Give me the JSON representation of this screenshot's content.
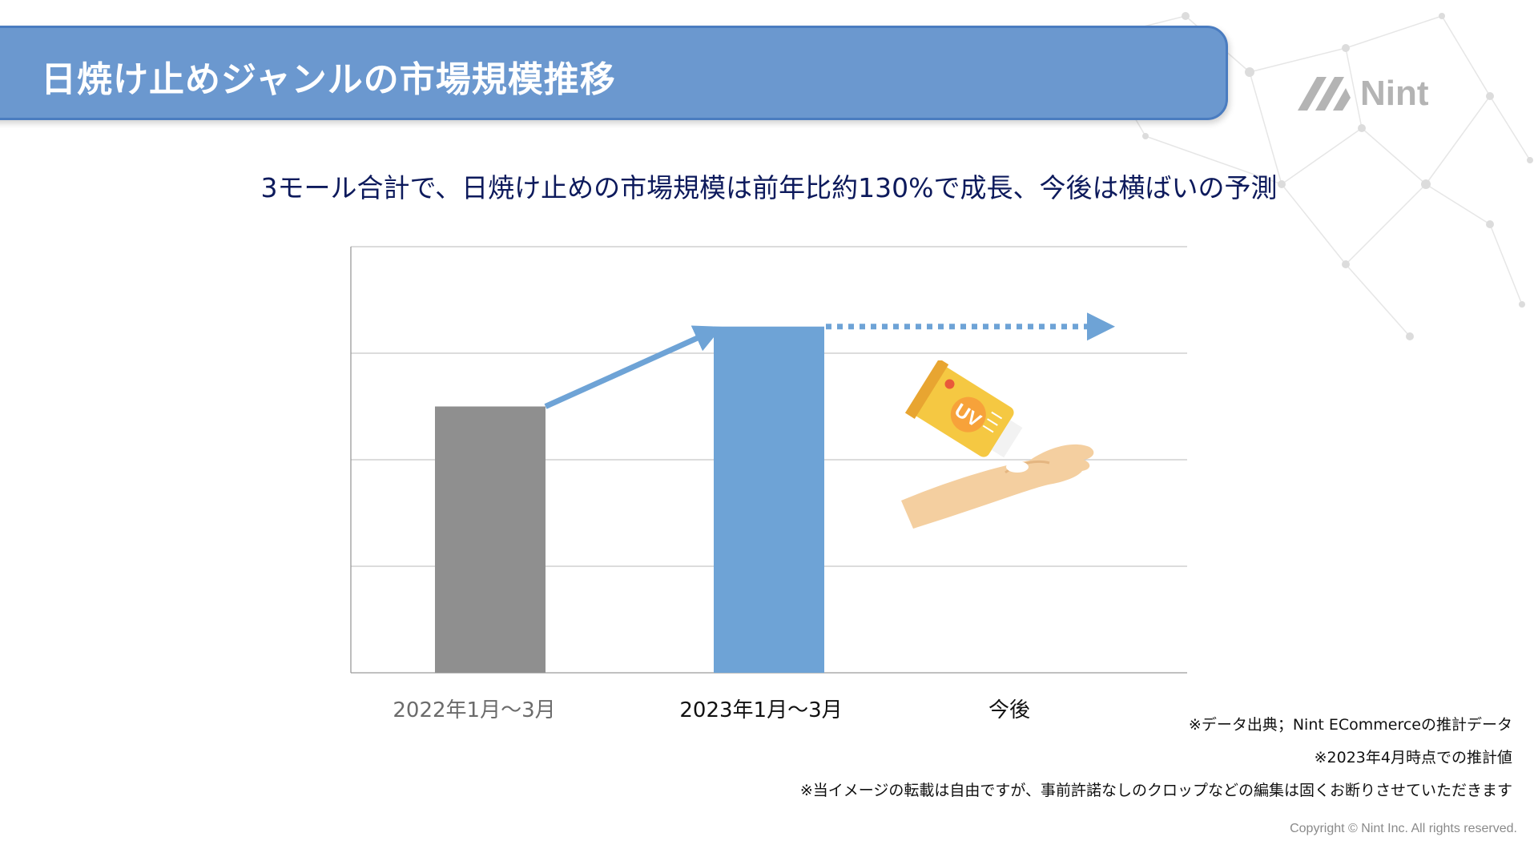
{
  "header": {
    "title": "日焼け止めジャンルの市場規模推移"
  },
  "logo": {
    "text": "Nint",
    "icon": "nint-logo-icon",
    "color": "#b4b4b4"
  },
  "subtitle": "3モール合計で、日焼け止めの市場規模は前年比約130%で成長、今後は横ばいの予測",
  "chart_data": {
    "type": "bar",
    "categories": [
      "2022年1月〜3月",
      "2023年1月〜3月",
      "今後"
    ],
    "values": [
      100,
      130,
      null
    ],
    "forecast": {
      "category": "今後",
      "value": 130,
      "style": "dotted-arrow"
    },
    "growth_arrow": {
      "from": "2022年1月〜3月",
      "to": "2023年1月〜3月"
    },
    "bar_colors": [
      "#8f8f8f",
      "#6ea3d6"
    ],
    "arrow_color": "#6ea3d6",
    "ylim": [
      0,
      160
    ],
    "ytick_step": 40,
    "yticks_labeled": false,
    "grid": true,
    "title": "",
    "xlabel": "",
    "ylabel": ""
  },
  "illustration": {
    "icon": "sunscreen-tube-and-hand-icon",
    "tube_label": "UV"
  },
  "notes": [
    "※データ出典；Nint ECommerceの推計データ",
    "※2023年4月時点での推計値",
    "※当イメージの転載は自由ですが、事前許諾なしのクロップなどの編集は固くお断りさせていただきます"
  ],
  "copyright": "Copyright © Nint Inc. All rights reserved."
}
